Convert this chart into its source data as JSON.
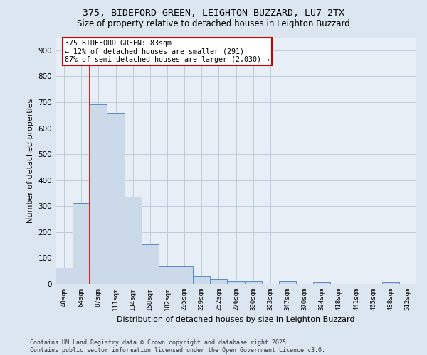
{
  "title1": "375, BIDEFORD GREEN, LEIGHTON BUZZARD, LU7 2TX",
  "title2": "Size of property relative to detached houses in Leighton Buzzard",
  "xlabel": "Distribution of detached houses by size in Leighton Buzzard",
  "ylabel": "Number of detached properties",
  "footnote": "Contains HM Land Registry data © Crown copyright and database right 2025.\nContains public sector information licensed under the Open Government Licence v3.0.",
  "categories": [
    "40sqm",
    "64sqm",
    "87sqm",
    "111sqm",
    "134sqm",
    "158sqm",
    "182sqm",
    "205sqm",
    "229sqm",
    "252sqm",
    "276sqm",
    "300sqm",
    "323sqm",
    "347sqm",
    "370sqm",
    "394sqm",
    "418sqm",
    "441sqm",
    "465sqm",
    "488sqm",
    "512sqm"
  ],
  "values": [
    62,
    312,
    693,
    658,
    335,
    152,
    67,
    67,
    30,
    20,
    12,
    12,
    0,
    10,
    0,
    8,
    0,
    0,
    0,
    8,
    0
  ],
  "bar_color": "#ccd9e8",
  "bar_edge_color": "#5b8ac7",
  "marker_line_color": "#cc0000",
  "annotation_line1": "375 BIDEFORD GREEN: 83sqm",
  "annotation_line2": "← 12% of detached houses are smaller (291)",
  "annotation_line3": "87% of semi-detached houses are larger (2,030) →",
  "annotation_box_color": "#cc0000",
  "ylim": [
    0,
    950
  ],
  "yticks": [
    0,
    100,
    200,
    300,
    400,
    500,
    600,
    700,
    800,
    900
  ],
  "bg_color": "#dce6f0",
  "plot_bg_color": "#e8eef5",
  "grid_color": "#b8c8d8"
}
